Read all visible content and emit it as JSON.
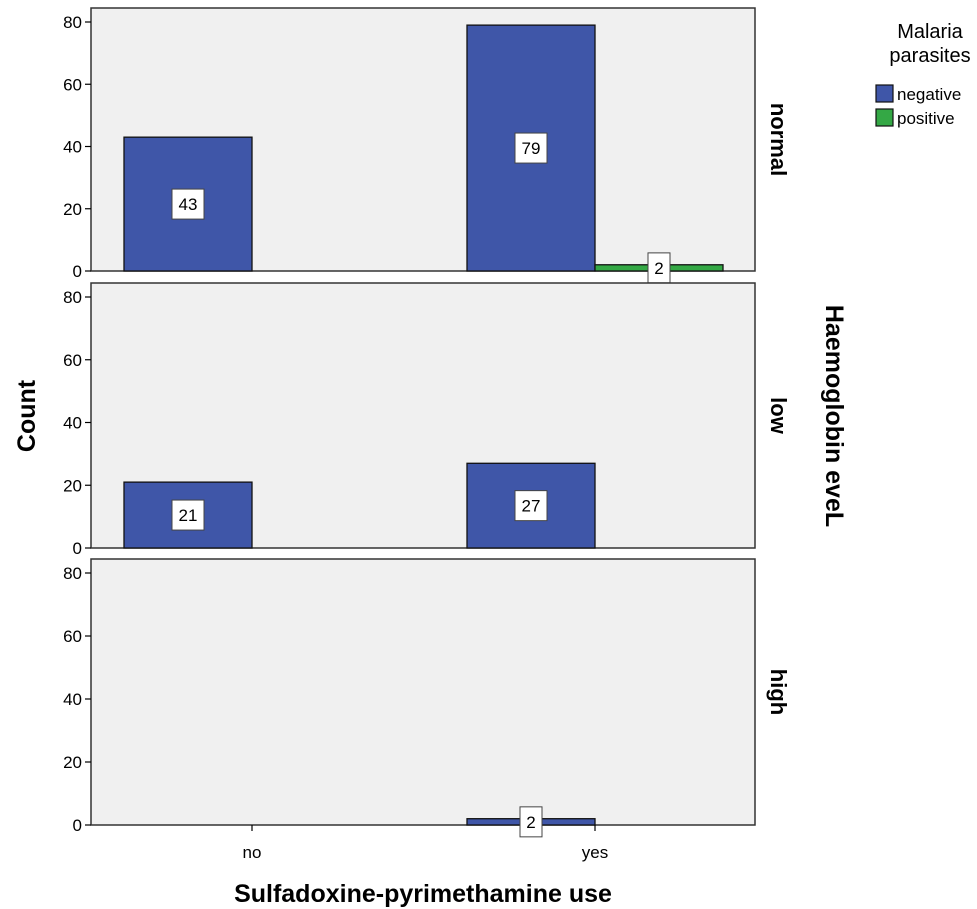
{
  "chart_data": {
    "type": "bar",
    "layout": "faceted-rows",
    "xlabel": "Sulfadoxine-pyrimethamine use",
    "ylabel": "Count",
    "facet_label": "Haemoglobin eveL",
    "categories": [
      "no",
      "yes"
    ],
    "ylim": [
      0,
      80
    ],
    "yticks": [
      "0",
      "20",
      "40",
      "60",
      "80"
    ],
    "legend": {
      "title_lines": [
        "Malaria",
        "parasites"
      ],
      "placement": "top-right",
      "entries": [
        {
          "name": "negative",
          "color": "#3F56A8"
        },
        {
          "name": "positive",
          "color": "#34A845"
        }
      ]
    },
    "panels": [
      {
        "name": "normal",
        "series": [
          {
            "name": "negative",
            "values": [
              43,
              79
            ]
          },
          {
            "name": "positive",
            "values": [
              0,
              2
            ]
          }
        ]
      },
      {
        "name": "low",
        "series": [
          {
            "name": "negative",
            "values": [
              21,
              27
            ]
          },
          {
            "name": "positive",
            "values": [
              0,
              0
            ]
          }
        ]
      },
      {
        "name": "high",
        "series": [
          {
            "name": "negative",
            "values": [
              0,
              2
            ]
          },
          {
            "name": "positive",
            "values": [
              0,
              0
            ]
          }
        ]
      }
    ],
    "grid": false,
    "panel_background": "#F0F0F0"
  }
}
